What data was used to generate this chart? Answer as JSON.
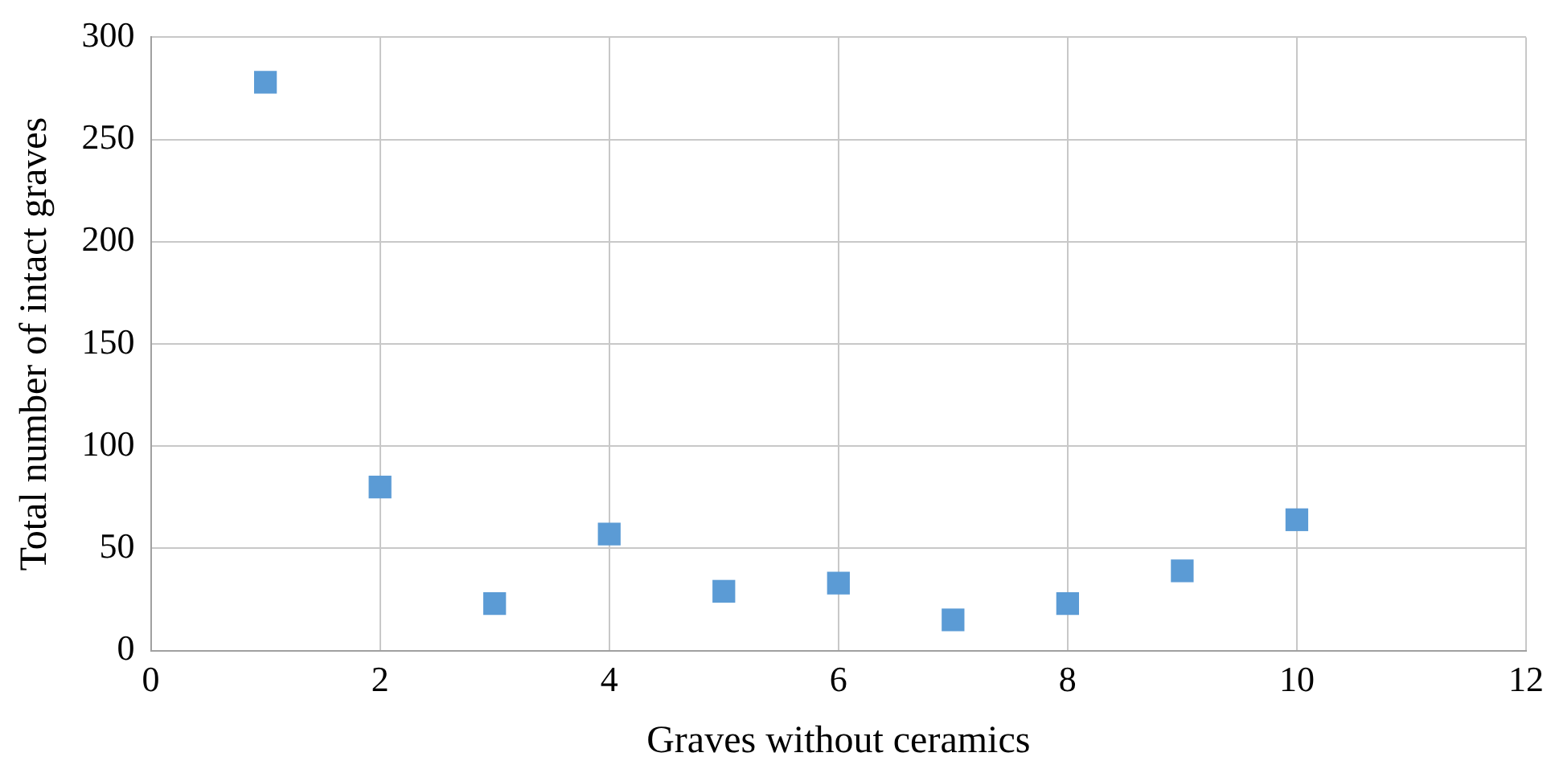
{
  "chart_data": {
    "type": "scatter",
    "xlabel": "Graves without ceramics",
    "ylabel": "Total number of intact graves",
    "x": [
      1,
      2,
      3,
      4,
      5,
      6,
      7,
      8,
      9,
      10
    ],
    "series": [
      {
        "color": "#5b9bd5",
        "values": [
          278,
          80,
          23,
          57,
          29,
          33,
          15,
          23,
          39,
          64
        ]
      }
    ],
    "xlim": [
      0,
      12
    ],
    "xticks": [
      0,
      2,
      4,
      6,
      8,
      10,
      12
    ],
    "ylim": [
      0,
      300
    ],
    "yticks": [
      0,
      50,
      100,
      150,
      200,
      250,
      300
    ],
    "grid": true,
    "marker": "square"
  }
}
